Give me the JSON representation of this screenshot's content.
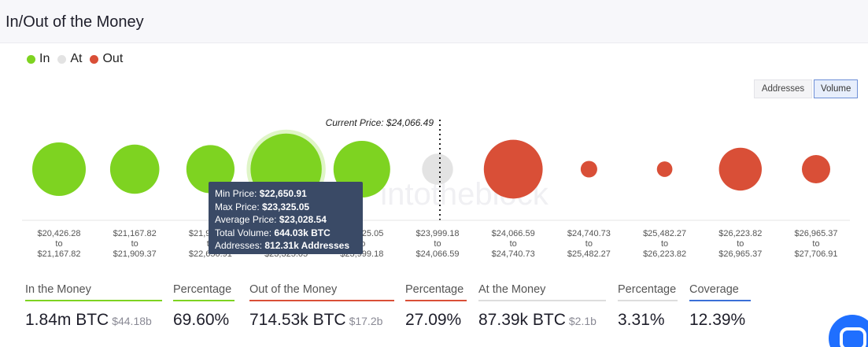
{
  "header": {
    "title": "In/Out of the Money"
  },
  "legend": [
    {
      "label": "In",
      "color": "#7ed321"
    },
    {
      "label": "At",
      "color": "#e3e3e3"
    },
    {
      "label": "Out",
      "color": "#d94f37"
    }
  ],
  "toggles": {
    "addresses": "Addresses",
    "volume": "Volume",
    "active": "Volume"
  },
  "watermark": "intotheblock",
  "chart_data": {
    "type": "bubble",
    "current_price_label": "Current Price: $24,066.49",
    "bins": [
      {
        "from": "$20,426.28",
        "to": "$21,167.82",
        "status": "in",
        "size": 1.0
      },
      {
        "from": "$21,167.82",
        "to": "$21,909.37",
        "status": "in",
        "size": 0.92
      },
      {
        "from": "$21,909.37",
        "to": "$22,650.91",
        "status": "in",
        "size": 0.9
      },
      {
        "from": "$22,650.91",
        "to": "$23,325.05",
        "status": "in",
        "size": 1.33,
        "hovered": true
      },
      {
        "from": "$23,325.05",
        "to": "$23,999.18",
        "status": "in",
        "size": 1.06
      },
      {
        "from": "$23,999.18",
        "to": "$24,066.59",
        "status": "at",
        "size": 0.58
      },
      {
        "from": "$24,066.59",
        "to": "$24,740.73",
        "status": "out",
        "size": 1.1
      },
      {
        "from": "$24,740.73",
        "to": "$25,482.27",
        "status": "out",
        "size": 0.31
      },
      {
        "from": "$25,482.27",
        "to": "$26,223.82",
        "status": "out",
        "size": 0.29
      },
      {
        "from": "$26,223.82",
        "to": "$26,965.37",
        "status": "out",
        "size": 0.8
      },
      {
        "from": "$26,965.37",
        "to": "$27,706.91",
        "status": "out",
        "size": 0.53
      }
    ],
    "to_word": "to"
  },
  "tooltip": {
    "min_label": "Min Price:",
    "min_value": "$22,650.91",
    "max_label": "Max Price:",
    "max_value": "$23,325.05",
    "avg_label": "Average Price:",
    "avg_value": "$23,028.54",
    "vol_label": "Total Volume:",
    "vol_value": "644.03k BTC",
    "addr_label": "Addresses:",
    "addr_value": "812.31k Addresses"
  },
  "stats": [
    {
      "label": "In the Money",
      "value": "1.84m BTC",
      "sub": "$44.18b",
      "color": "#7ed321"
    },
    {
      "label": "Percentage",
      "value": "69.60%",
      "sub": "",
      "color": "#7ed321"
    },
    {
      "label": "Out of the Money",
      "value": "714.53k BTC",
      "sub": "$17.2b",
      "color": "#d94f37"
    },
    {
      "label": "Percentage",
      "value": "27.09%",
      "sub": "",
      "color": "#d94f37"
    },
    {
      "label": "At the Money",
      "value": "87.39k BTC",
      "sub": "$2.1b",
      "color": "#dddddd"
    },
    {
      "label": "Percentage",
      "value": "3.31%",
      "sub": "",
      "color": "#dddddd"
    },
    {
      "label": "Coverage",
      "value": "12.39%",
      "sub": "",
      "color": "#3a6fd8"
    }
  ]
}
